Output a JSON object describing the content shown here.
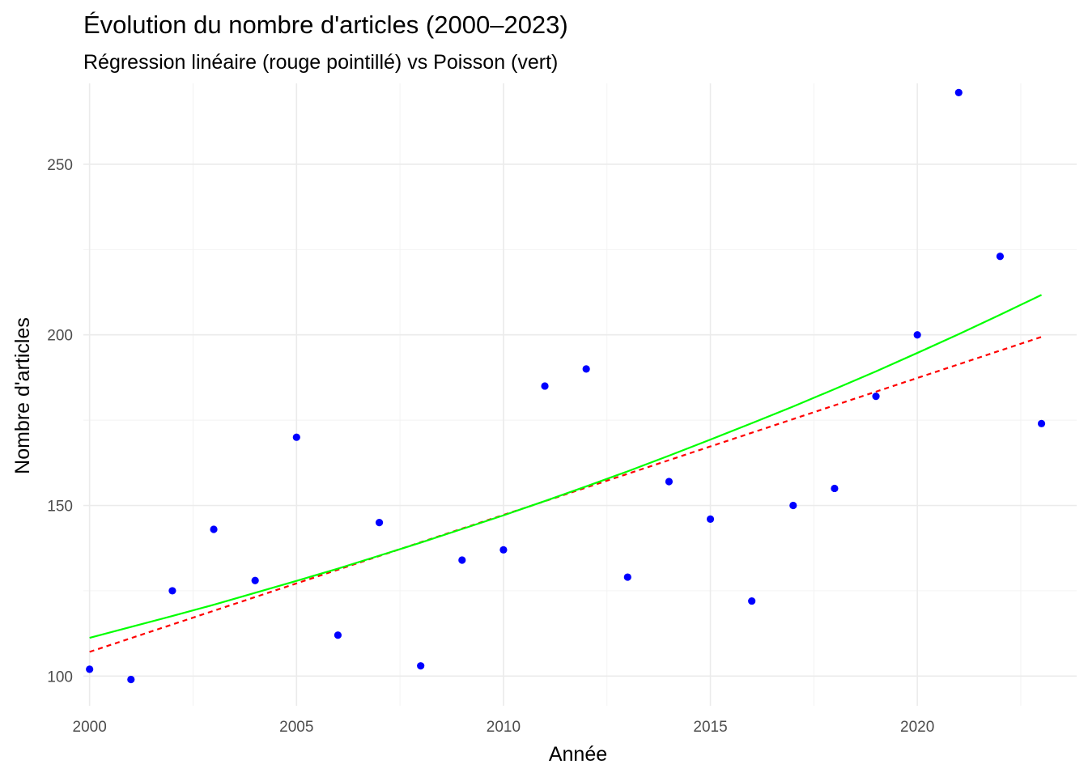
{
  "chart_data": {
    "type": "scatter",
    "title": "Évolution du nombre d'articles (2000–2023)",
    "subtitle": "Régression linéaire (rouge pointillé) vs Poisson (vert)",
    "xlabel": "Année",
    "ylabel": "Nombre d'articles",
    "xlim": [
      1999.85,
      2023.85
    ],
    "ylim": [
      91.3,
      273.7
    ],
    "x_ticks": [
      2000,
      2005,
      2010,
      2015,
      2020
    ],
    "y_ticks": [
      100,
      150,
      200,
      250
    ],
    "grid": true,
    "legend": "none",
    "series": [
      {
        "kind": "points",
        "color": "#0000ff",
        "x": [
          2000,
          2001,
          2002,
          2003,
          2004,
          2005,
          2006,
          2007,
          2008,
          2009,
          2010,
          2011,
          2012,
          2013,
          2014,
          2015,
          2016,
          2017,
          2018,
          2019,
          2020,
          2021,
          2022,
          2023
        ],
        "y": [
          102,
          99,
          125,
          143,
          128,
          170,
          112,
          145,
          103,
          134,
          137,
          185,
          190,
          129,
          157,
          146,
          122,
          150,
          155,
          182,
          200,
          271,
          223,
          174
        ]
      },
      {
        "kind": "line",
        "style": "dashed",
        "color": "#ff0000",
        "x": [
          2000,
          2023
        ],
        "y": [
          107.1,
          199.4
        ]
      },
      {
        "kind": "line",
        "style": "solid",
        "color": "#00ff00",
        "x": [
          2000,
          2001,
          2002,
          2003,
          2004,
          2005,
          2006,
          2007,
          2008,
          2009,
          2010,
          2011,
          2012,
          2013,
          2014,
          2015,
          2016,
          2017,
          2018,
          2019,
          2020,
          2021,
          2022,
          2023
        ],
        "y": [
          111.2,
          114.4,
          117.6,
          120.9,
          124.4,
          127.9,
          131.5,
          135.3,
          139.1,
          143.1,
          147.1,
          151.3,
          155.6,
          160.0,
          164.6,
          169.3,
          174.1,
          179.0,
          184.1,
          189.3,
          194.7,
          200.2,
          205.9,
          211.7
        ]
      }
    ]
  }
}
